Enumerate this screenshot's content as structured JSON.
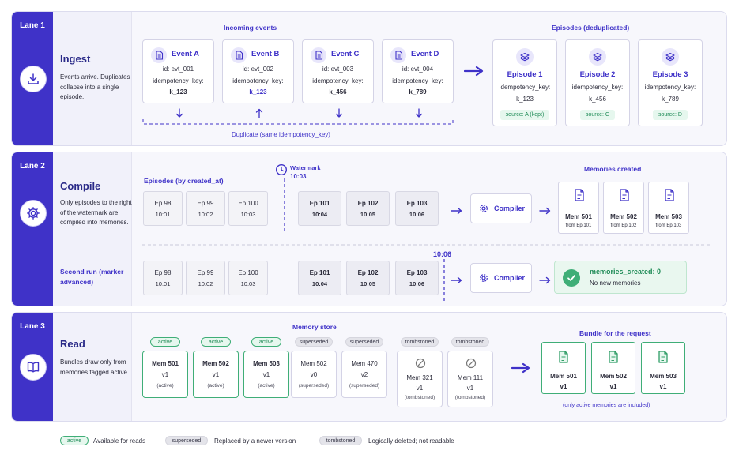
{
  "lane1": {
    "tag": "Lane 1",
    "title": "Ingest",
    "desc": "Events arrive. Duplicates collapse into a single episode.",
    "incoming_label": "Incoming events",
    "episodes_label": "Episodes (deduplicated)",
    "duplicate_note": "Duplicate (same idempotency_key)",
    "key_label": "idempotency_key:",
    "events": [
      {
        "title": "Event A",
        "id": "id: evt_001",
        "key": "k_123",
        "arrow": "down"
      },
      {
        "title": "Event B",
        "id": "id: evt_002",
        "key": "k_123",
        "arrow": "up"
      },
      {
        "title": "Event C",
        "id": "id: evt_003",
        "key": "k_456",
        "arrow": "down"
      },
      {
        "title": "Event D",
        "id": "id: evt_004",
        "key": "k_789",
        "arrow": "down"
      }
    ],
    "episodes": [
      {
        "title": "Episode 1",
        "key": "k_123",
        "source": "source: A (kept)"
      },
      {
        "title": "Episode 2",
        "key": "k_456",
        "source": "source: C"
      },
      {
        "title": "Episode 3",
        "key": "k_789",
        "source": "source: D"
      }
    ]
  },
  "lane2": {
    "tag": "Lane 2",
    "title": "Compile",
    "desc": "Only episodes to the right of the watermark are compiled into memories.",
    "episodes_label": "Episodes (by created_at)",
    "watermark_label": "Watermark",
    "watermark_time": "10:03",
    "second_watermark_time": "10:06",
    "memories_label": "Memories created",
    "second_run_label": "Second run (marker advanced)",
    "compiler_label": "Compiler",
    "episodes": [
      {
        "name": "Ep 98",
        "time": "10:01"
      },
      {
        "name": "Ep 99",
        "time": "10:02"
      },
      {
        "name": "Ep 100",
        "time": "10:03"
      },
      {
        "name": "Ep 101",
        "time": "10:04"
      },
      {
        "name": "Ep 102",
        "time": "10:05"
      },
      {
        "name": "Ep 103",
        "time": "10:06"
      }
    ],
    "memories": [
      {
        "name": "Mem 501",
        "from": "from Ep 101"
      },
      {
        "name": "Mem 502",
        "from": "from Ep 102"
      },
      {
        "name": "Mem 503",
        "from": "from Ep 103"
      }
    ],
    "result_title": "memories_created: 0",
    "result_sub": "No new memories"
  },
  "lane3": {
    "tag": "Lane 3",
    "title": "Read",
    "desc": "Bundles draw only from memories tagged active.",
    "store_label": "Memory store",
    "bundle_label": "Bundle for the request",
    "bundle_note": "(only active memories are included)",
    "store": [
      {
        "badge": "active",
        "name": "Mem 501",
        "ver": "v1",
        "status": "(active)",
        "kind": "active"
      },
      {
        "badge": "active",
        "name": "Mem 502",
        "ver": "v1",
        "status": "(active)",
        "kind": "active"
      },
      {
        "badge": "active",
        "name": "Mem 503",
        "ver": "v1",
        "status": "(active)",
        "kind": "active"
      },
      {
        "badge": "superseded",
        "name": "Mem 502",
        "ver": "v0",
        "status": "(superseded)",
        "kind": "superseded"
      },
      {
        "badge": "superseded",
        "name": "Mem 470",
        "ver": "v2",
        "status": "(superseded)",
        "kind": "superseded"
      },
      {
        "badge": "tombstoned",
        "name": "Mem 321",
        "ver": "v1",
        "status": "(tombstoned)",
        "kind": "tombstoned"
      },
      {
        "badge": "tombstoned",
        "name": "Mem 111",
        "ver": "v1",
        "status": "(tombstoned)",
        "kind": "tombstoned"
      }
    ],
    "bundle": [
      {
        "name": "Mem 501",
        "ver": "v1"
      },
      {
        "name": "Mem 502",
        "ver": "v1"
      },
      {
        "name": "Mem 503",
        "ver": "v1"
      }
    ]
  },
  "legend": [
    {
      "badge": "active",
      "text": "Available for reads"
    },
    {
      "badge": "superseded",
      "text": "Replaced by a newer version"
    },
    {
      "badge": "tombstoned",
      "text": "Logically deleted; not readable"
    }
  ],
  "colors": {
    "accent": "#3f32c8",
    "active_green": "#3fae77"
  }
}
